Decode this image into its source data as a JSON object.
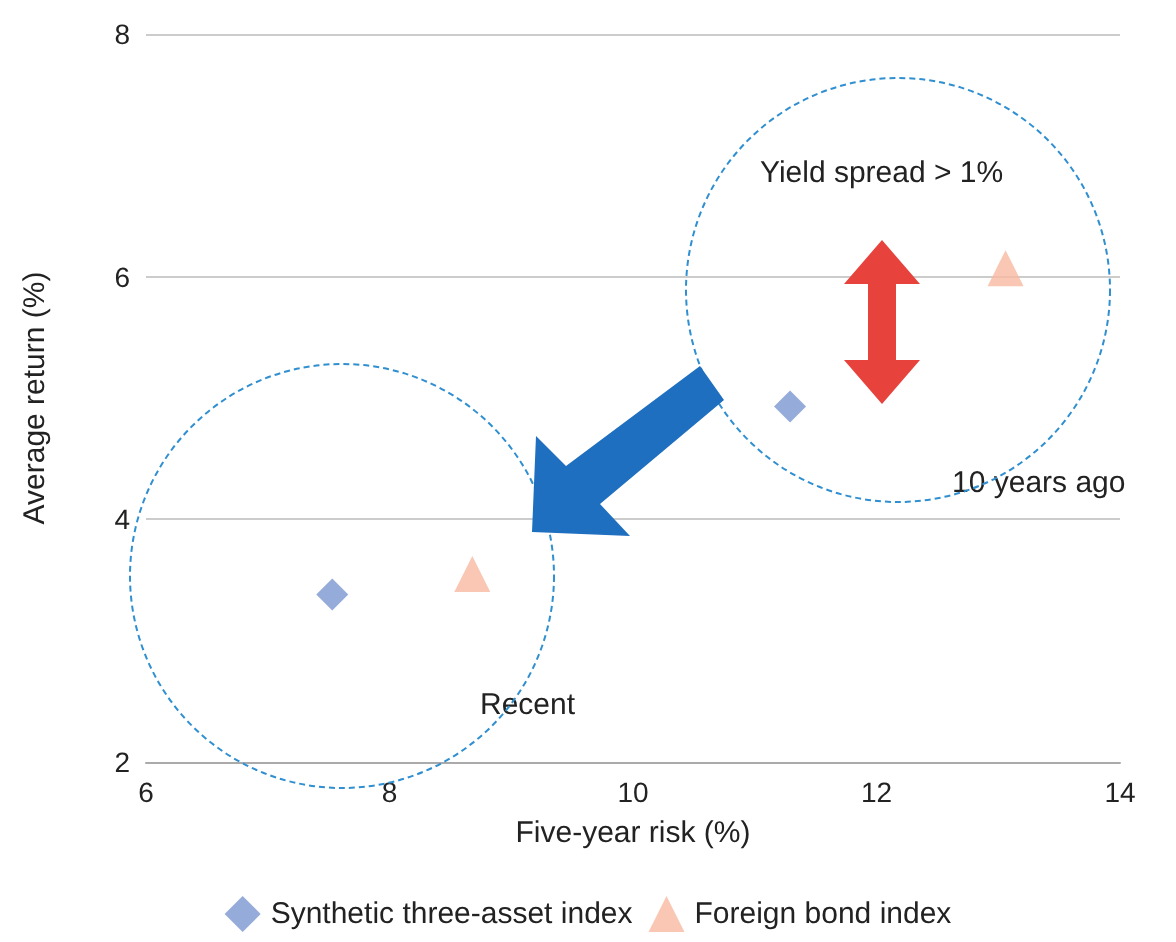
{
  "chart_data": {
    "type": "scatter",
    "xlabel": "Five-year risk (%)",
    "ylabel": "Average return (%)",
    "xlim": [
      6,
      14
    ],
    "xticks": [
      6,
      8,
      10,
      12,
      14
    ],
    "ylim": [
      2,
      8
    ],
    "yticks": [
      2,
      4,
      6,
      8
    ],
    "grid": "y",
    "legend": "bottom",
    "series": [
      {
        "name": "Synthetic three-asset index",
        "color": "#7b96d0",
        "marker": "diamond",
        "x": [
          7.53,
          11.29
        ],
        "values": [
          3.38,
          4.93
        ]
      },
      {
        "name": "Foreign bond index",
        "color": "#f8b9a0",
        "marker": "triangle",
        "x": [
          8.68,
          13.06
        ],
        "values": [
          3.55,
          6.07
        ]
      }
    ],
    "annotations": [
      "Yield spread > 1%",
      "10 years ago",
      "Recent"
    ]
  }
}
